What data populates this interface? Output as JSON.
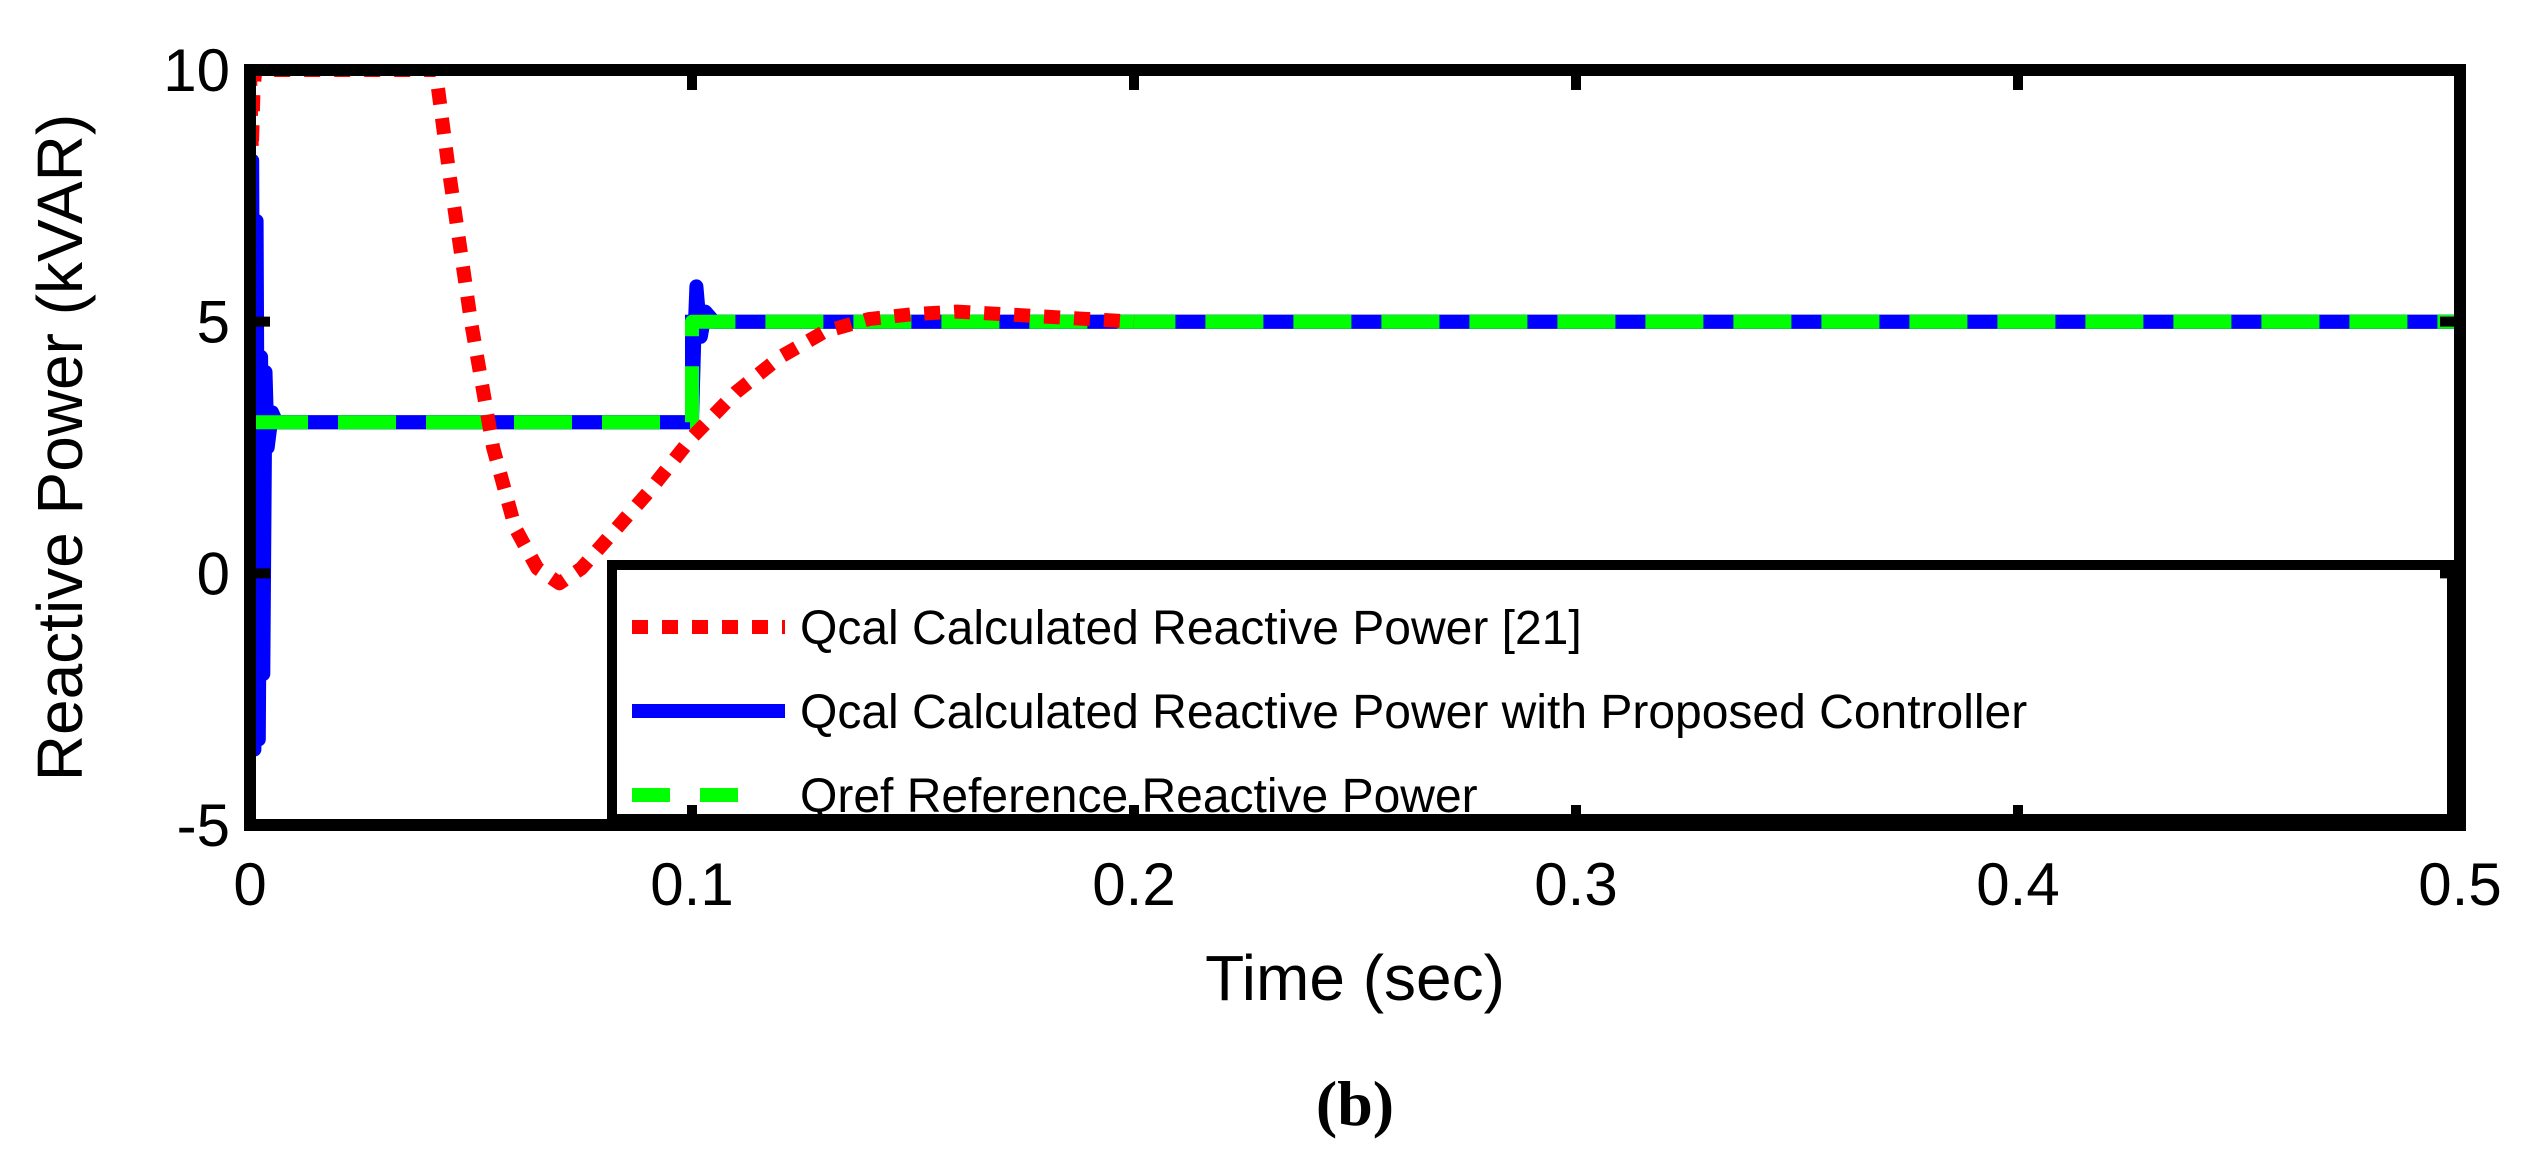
{
  "chart_data": {
    "type": "line",
    "title": "",
    "xlabel": "Time (sec)",
    "ylabel": "Reactive Power (kVAR)",
    "xlim": [
      0,
      0.5
    ],
    "ylim": [
      -5,
      10
    ],
    "x_ticks": [
      0,
      0.1,
      0.2,
      0.3,
      0.4,
      0.5
    ],
    "x_tick_labels": [
      "0",
      "0.1",
      "0.2",
      "0.3",
      "0.4",
      "0.5"
    ],
    "y_ticks": [
      -5,
      0,
      5,
      10
    ],
    "y_tick_labels": [
      "-5",
      "0",
      "5",
      "10"
    ],
    "legend_location": "bottom-right",
    "series": [
      {
        "name": "Qcal Calculated Reactive Power [21]",
        "color": "#ff0000",
        "style": "dotted",
        "x": [
          0.0,
          0.0004,
          0.0008,
          0.0012,
          0.042,
          0.045,
          0.05,
          0.055,
          0.06,
          0.065,
          0.07,
          0.075,
          0.08,
          0.09,
          0.1,
          0.11,
          0.12,
          0.13,
          0.14,
          0.15,
          0.16,
          0.17,
          0.18,
          0.2
        ],
        "values": [
          10.0,
          8.4,
          9.6,
          10.0,
          10.0,
          8.0,
          5.0,
          2.5,
          0.9,
          0.1,
          -0.2,
          0.1,
          0.6,
          1.6,
          2.7,
          3.6,
          4.3,
          4.8,
          5.05,
          5.15,
          5.2,
          5.15,
          5.1,
          5.0
        ]
      },
      {
        "name": "Qcal Calculated Reactive Power with Proposed Controller",
        "color": "#0000ff",
        "style": "solid",
        "x": [
          0.0,
          0.0005,
          0.001,
          0.0015,
          0.002,
          0.0025,
          0.003,
          0.0035,
          0.004,
          0.005,
          0.006,
          0.1,
          0.1005,
          0.101,
          0.102,
          0.103,
          0.105,
          0.11,
          0.5
        ],
        "values": [
          3.0,
          8.2,
          -3.5,
          7.0,
          -3.3,
          4.3,
          -2.0,
          4.0,
          2.5,
          3.2,
          3.0,
          3.0,
          4.6,
          5.7,
          4.7,
          5.2,
          5.0,
          5.0,
          5.0
        ]
      },
      {
        "name": "Qref Reference Reactive Power",
        "color": "#00ff00",
        "style": "dashed",
        "x": [
          0.0,
          0.1,
          0.1,
          0.5
        ],
        "values": [
          3.0,
          3.0,
          5.0,
          5.0
        ]
      }
    ],
    "caption": "(b)"
  }
}
